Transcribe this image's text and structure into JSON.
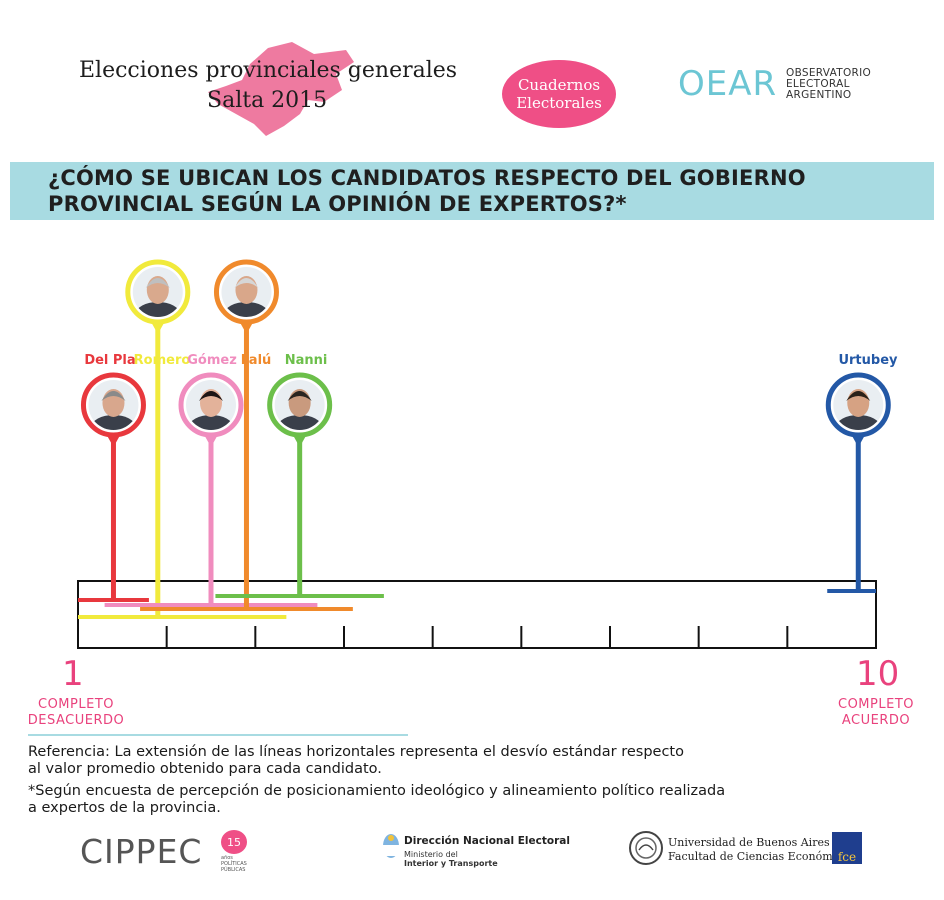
{
  "header": {
    "title_line_1": "Elecciones provinciales generales",
    "title_line_2": "Salta 2015",
    "badge_line_1": "Cuadernos",
    "badge_line_2": "Electorales",
    "oear_mark": "OEAR",
    "oear_text_1": "OBSERVATORIO",
    "oear_text_2": "ELECTORAL",
    "oear_text_3": "ARGENTINO",
    "colors": {
      "map_pink": "#ee7aa0",
      "bubble_pink": "#ef4f86",
      "band_blue": "#a8dbe2",
      "oear_teal": "#6cc6d4"
    }
  },
  "question": {
    "line_1": "¿CÓMO SE UBICAN LOS CANDIDATOS RESPECTO DEL GOBIERNO",
    "line_2": "PROVINCIAL SEGÚN LA OPINIÓN DE EXPERTOS?*"
  },
  "chart_data": {
    "type": "scatter",
    "x_range": [
      1,
      10
    ],
    "x_ticks": [
      1,
      2,
      3,
      4,
      5,
      6,
      7,
      8,
      9,
      10
    ],
    "x_min_label": {
      "value": "1",
      "text": [
        "COMPLETO",
        "DESACUERDO"
      ]
    },
    "x_max_label": {
      "value": "10",
      "text": [
        "COMPLETO",
        "ACUERDO"
      ]
    },
    "candidates": [
      {
        "name": "Del Pla",
        "color": "#e8383d",
        "mean": 1.4,
        "sd": 0.4,
        "photo_row": "low",
        "skin": "#d8a78d",
        "hair": "#8a8a8a"
      },
      {
        "name": "Romero",
        "color": "#f1ea3c",
        "mean": 1.9,
        "sd": 1.45,
        "photo_row": "high",
        "skin": "#d9a98d",
        "hair": "#bfbfbf"
      },
      {
        "name": "Gómez",
        "color": "#f08cbe",
        "mean": 2.5,
        "sd": 1.2,
        "photo_row": "low",
        "skin": "#e3b29a",
        "hair": "#1d1515"
      },
      {
        "name": "Falú",
        "color": "#f08a2c",
        "mean": 2.9,
        "sd": 1.2,
        "photo_row": "high",
        "skin": "#d9a78a",
        "hair": "#d6d6d6"
      },
      {
        "name": "Nanni",
        "color": "#6cbf4a",
        "mean": 3.5,
        "sd": 0.95,
        "photo_row": "low",
        "skin": "#c99a7e",
        "hair": "#2a2520"
      },
      {
        "name": "Urtubey",
        "color": "#2358a6",
        "mean": 9.8,
        "sd": 0.35,
        "photo_row": "low",
        "skin": "#d6a283",
        "hair": "#2a2118"
      }
    ]
  },
  "notes": {
    "reference": "Referencia:  La extensión de las líneas horizontales representa el desvío estándar respecto",
    "reference_2": "al valor promedio obtenido para cada candidato.",
    "footnote": "*Según encuesta de percepción de posicionamiento ideológico y alineamiento político realizada",
    "footnote_2": "a expertos de la provincia."
  },
  "footer": {
    "cippec": "CIPPEC",
    "cippec_badge": "15",
    "cippec_badge_sub": "años",
    "cippec_sub_1": "POLÍTICAS",
    "cippec_sub_2": "PÚBLICAS",
    "dne_title": "Dirección Nacional Electoral",
    "dne_sub_1": "Ministerio del",
    "dne_sub_2": "Interior y Transporte",
    "uba_1": "Universidad de Buenos Aires",
    "uba_2": "Facultad de Ciencias Económicas",
    "fce": "fce"
  }
}
